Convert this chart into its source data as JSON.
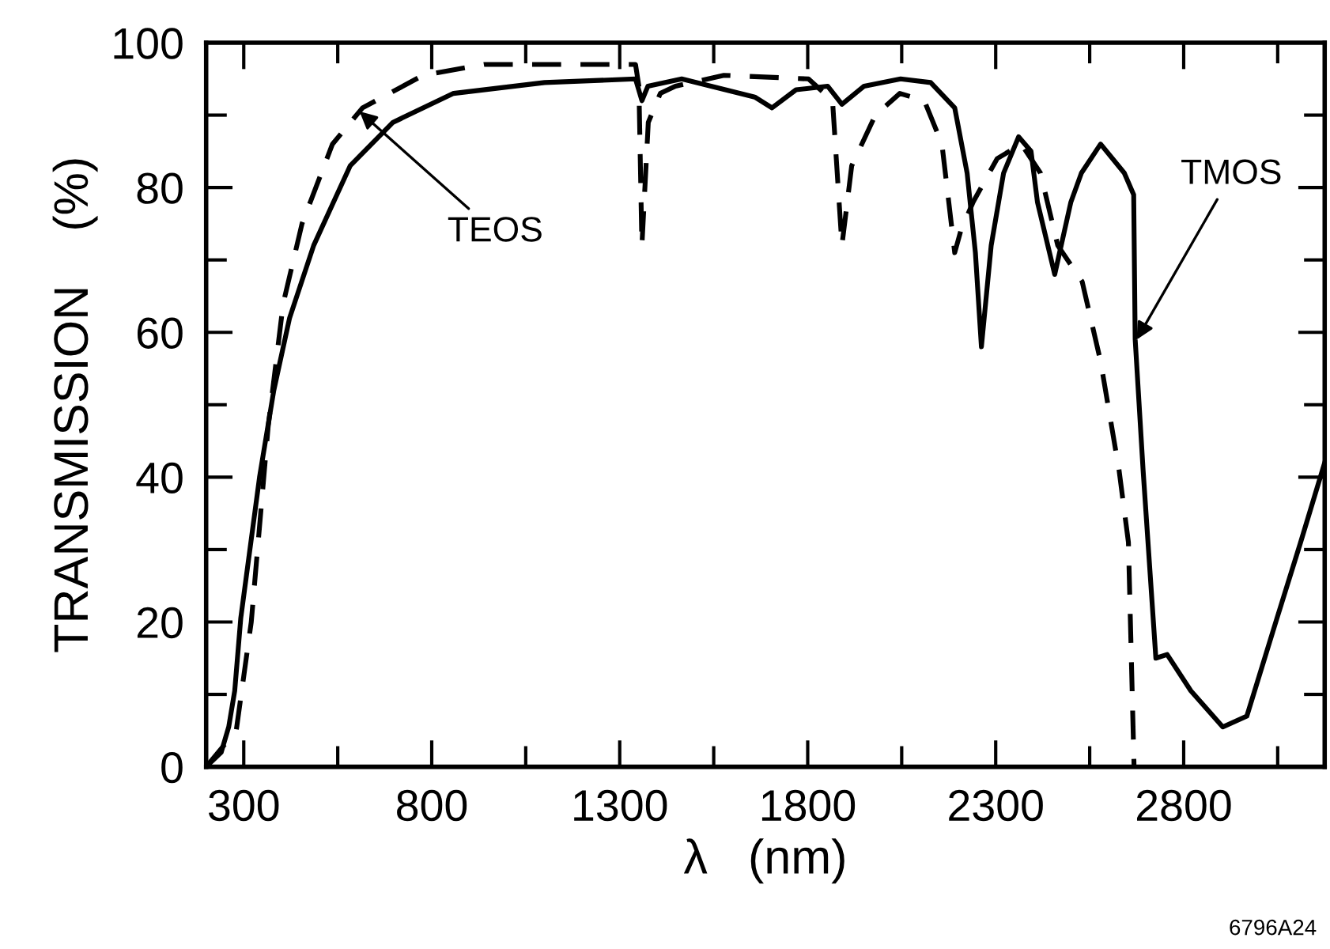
{
  "chart_data": {
    "type": "line",
    "xlabel": "λ   (nm)",
    "ylabel": "TRANSMISSION    (%)",
    "xlim": [
      200,
      3175
    ],
    "ylim": [
      0,
      100
    ],
    "xticks": [
      {
        "value": 300,
        "label": "300"
      },
      {
        "value": 550,
        "label": null
      },
      {
        "value": 800,
        "label": "800"
      },
      {
        "value": 1050,
        "label": null
      },
      {
        "value": 1300,
        "label": "1300"
      },
      {
        "value": 1550,
        "label": null
      },
      {
        "value": 1800,
        "label": "1800"
      },
      {
        "value": 2050,
        "label": null
      },
      {
        "value": 2300,
        "label": "2300"
      },
      {
        "value": 2550,
        "label": null
      },
      {
        "value": 2800,
        "label": "2800"
      },
      {
        "value": 3050,
        "label": null
      }
    ],
    "yticks": [
      0,
      {
        "value": 10,
        "label": null
      },
      20,
      {
        "value": 30,
        "label": null
      },
      40,
      {
        "value": 50,
        "label": null
      },
      60,
      {
        "value": 70,
        "label": null
      },
      80,
      {
        "value": 90,
        "label": null
      },
      100
    ],
    "grid": false,
    "marker": "none",
    "series": [
      {
        "color": "#000000",
        "line_style": "dashed",
        "x": [
          200,
          280,
          320,
          345,
          365,
          405,
          455,
          536,
          616,
          777,
          940,
          1262,
          1342,
          1351,
          1359,
          1376,
          1408,
          1448,
          1577,
          1802,
          1866,
          1891,
          1917,
          1980,
          2045,
          2110,
          2157,
          2191,
          2207,
          2240,
          2304,
          2368,
          2419,
          2465,
          2530,
          2579,
          2628,
          2653,
          2668
        ],
        "values": [
          0,
          5,
          20,
          35,
          47,
          64,
          75,
          86,
          91,
          95.5,
          97,
          97,
          97,
          94,
          72,
          89,
          93,
          94,
          95.5,
          95,
          92,
          72,
          83,
          90,
          93,
          92,
          86,
          71,
          74,
          78,
          84,
          86,
          82,
          72,
          67,
          56,
          41,
          31,
          0
        ]
      },
      {
        "color": "#000000",
        "line_style": "solid",
        "x": [
          200,
          240,
          260,
          276,
          292,
          342,
          380,
          422,
          486,
          583,
          697,
          858,
          1100,
          1342,
          1359,
          1375,
          1465,
          1659,
          1705,
          1769,
          1853,
          1891,
          1950,
          2047,
          2127,
          2191,
          2224,
          2246,
          2262,
          2288,
          2321,
          2361,
          2394,
          2411,
          2457,
          2500,
          2528,
          2579,
          2642,
          2667,
          2671,
          2692,
          2726,
          2756,
          2819,
          2904,
          2968,
          3048,
          3111,
          3175
        ],
        "values": [
          0,
          2,
          5.5,
          10.5,
          20.5,
          40,
          52,
          62,
          72,
          83,
          89,
          93,
          94.5,
          95,
          92,
          94,
          95,
          92.5,
          91,
          93.5,
          94,
          91.5,
          94,
          95,
          94.5,
          91,
          82,
          71,
          58,
          72,
          82,
          87,
          85,
          78,
          68,
          78,
          82,
          86,
          82,
          79,
          59,
          41,
          15,
          15.5,
          10.5,
          5.5,
          7,
          20.5,
          31,
          42
        ]
      }
    ],
    "annotations": [
      {
        "text": "TEOS",
        "x": 608,
        "y": 90.5
      },
      {
        "text": "TMOS",
        "x": 2675,
        "y": 59
      },
      "6796A24"
    ]
  }
}
